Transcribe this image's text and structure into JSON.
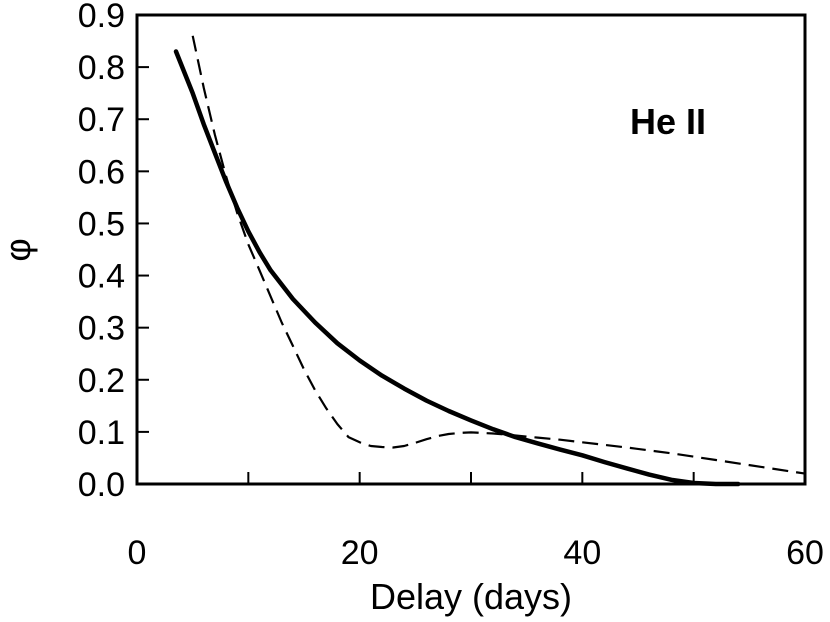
{
  "chart_data": {
    "type": "line",
    "xlabel": "Delay (days)",
    "ylabel": "φ",
    "annotation": "He II",
    "xlim": [
      0,
      60
    ],
    "ylim": [
      0,
      0.9
    ],
    "xticks": [
      0,
      20,
      40,
      60
    ],
    "xtick_labels": [
      "0",
      "20",
      "40",
      "60"
    ],
    "xticks_minor": [
      10,
      30,
      50
    ],
    "yticks": [
      0,
      0.1,
      0.2,
      0.3,
      0.4,
      0.5,
      0.6,
      0.7,
      0.8,
      0.9
    ],
    "ytick_labels": [
      "0.0",
      "0.1",
      "0.2",
      "0.3",
      "0.4",
      "0.5",
      "0.6",
      "0.7",
      "0.8",
      "0.9"
    ],
    "grid": false,
    "series": [
      {
        "style": "solid",
        "color": "#000000",
        "x": [
          3.5,
          5,
          6,
          7,
          8,
          9,
          10,
          11,
          12,
          14,
          16,
          18,
          20,
          22,
          24,
          26,
          28,
          30,
          32,
          34,
          36,
          38,
          40,
          42,
          44,
          46,
          48,
          50,
          52,
          54
        ],
        "y": [
          0.83,
          0.75,
          0.69,
          0.635,
          0.58,
          0.53,
          0.485,
          0.445,
          0.41,
          0.355,
          0.31,
          0.27,
          0.237,
          0.208,
          0.183,
          0.16,
          0.14,
          0.122,
          0.105,
          0.09,
          0.078,
          0.066,
          0.055,
          0.042,
          0.03,
          0.018,
          0.008,
          0.002,
          0.0,
          0.0
        ]
      },
      {
        "style": "dashed",
        "color": "#000000",
        "x": [
          5,
          6,
          7,
          8,
          9,
          10,
          11,
          12,
          13,
          14,
          15,
          16,
          17,
          18,
          19,
          20,
          21,
          22,
          23,
          24,
          25,
          26,
          27,
          28,
          29,
          30,
          32,
          34,
          36,
          38,
          40,
          44,
          48,
          52,
          56,
          60
        ],
        "y": [
          0.86,
          0.76,
          0.67,
          0.59,
          0.52,
          0.46,
          0.41,
          0.36,
          0.31,
          0.265,
          0.22,
          0.18,
          0.145,
          0.115,
          0.09,
          0.08,
          0.073,
          0.071,
          0.07,
          0.073,
          0.079,
          0.086,
          0.092,
          0.096,
          0.098,
          0.099,
          0.097,
          0.093,
          0.089,
          0.085,
          0.08,
          0.07,
          0.059,
          0.046,
          0.033,
          0.02
        ]
      }
    ]
  }
}
